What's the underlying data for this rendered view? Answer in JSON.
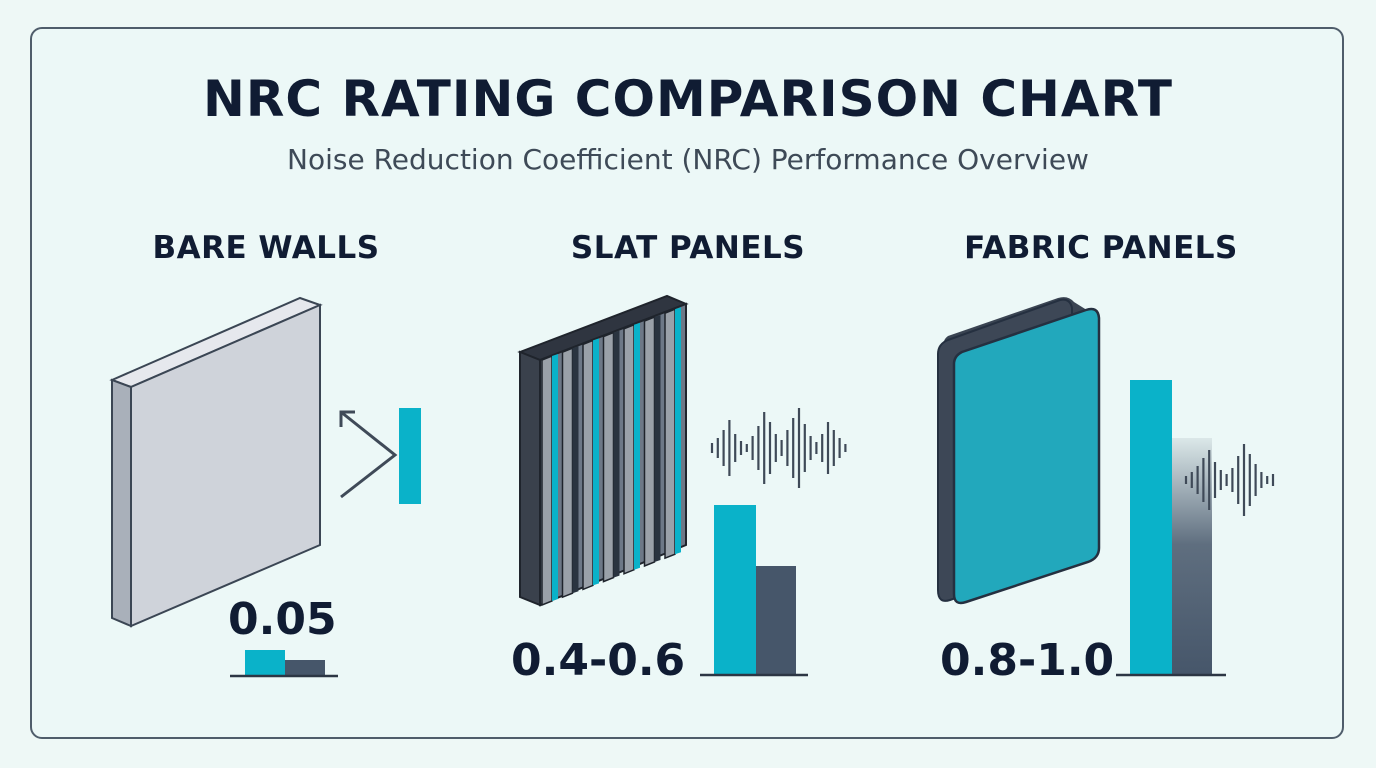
{
  "title": "NRC RATING COMPARISON CHART",
  "subtitle": "Noise Reduction Coefficient (NRC) Performance Overview",
  "panels": [
    {
      "heading": "BARE WALLS",
      "value_label": "0.05",
      "nrc": 0.05
    },
    {
      "heading": "SLAT PANELS",
      "value_label": "0.4-0.6",
      "nrc_min": 0.4,
      "nrc_max": 0.6
    },
    {
      "heading": "FABRIC PANELS",
      "value_label": "0.8-1.0",
      "nrc_min": 0.8,
      "nrc_max": 1.0
    }
  ],
  "colors": {
    "accent": "#0ab2c9",
    "dark": "#46566a",
    "text": "#101c33",
    "border": "#4f5d6b"
  },
  "icons": [
    "bare-wall-icon",
    "slat-panel-icon",
    "fabric-panel-icon",
    "reflection-arrow-icon",
    "sound-wave-icon"
  ]
}
